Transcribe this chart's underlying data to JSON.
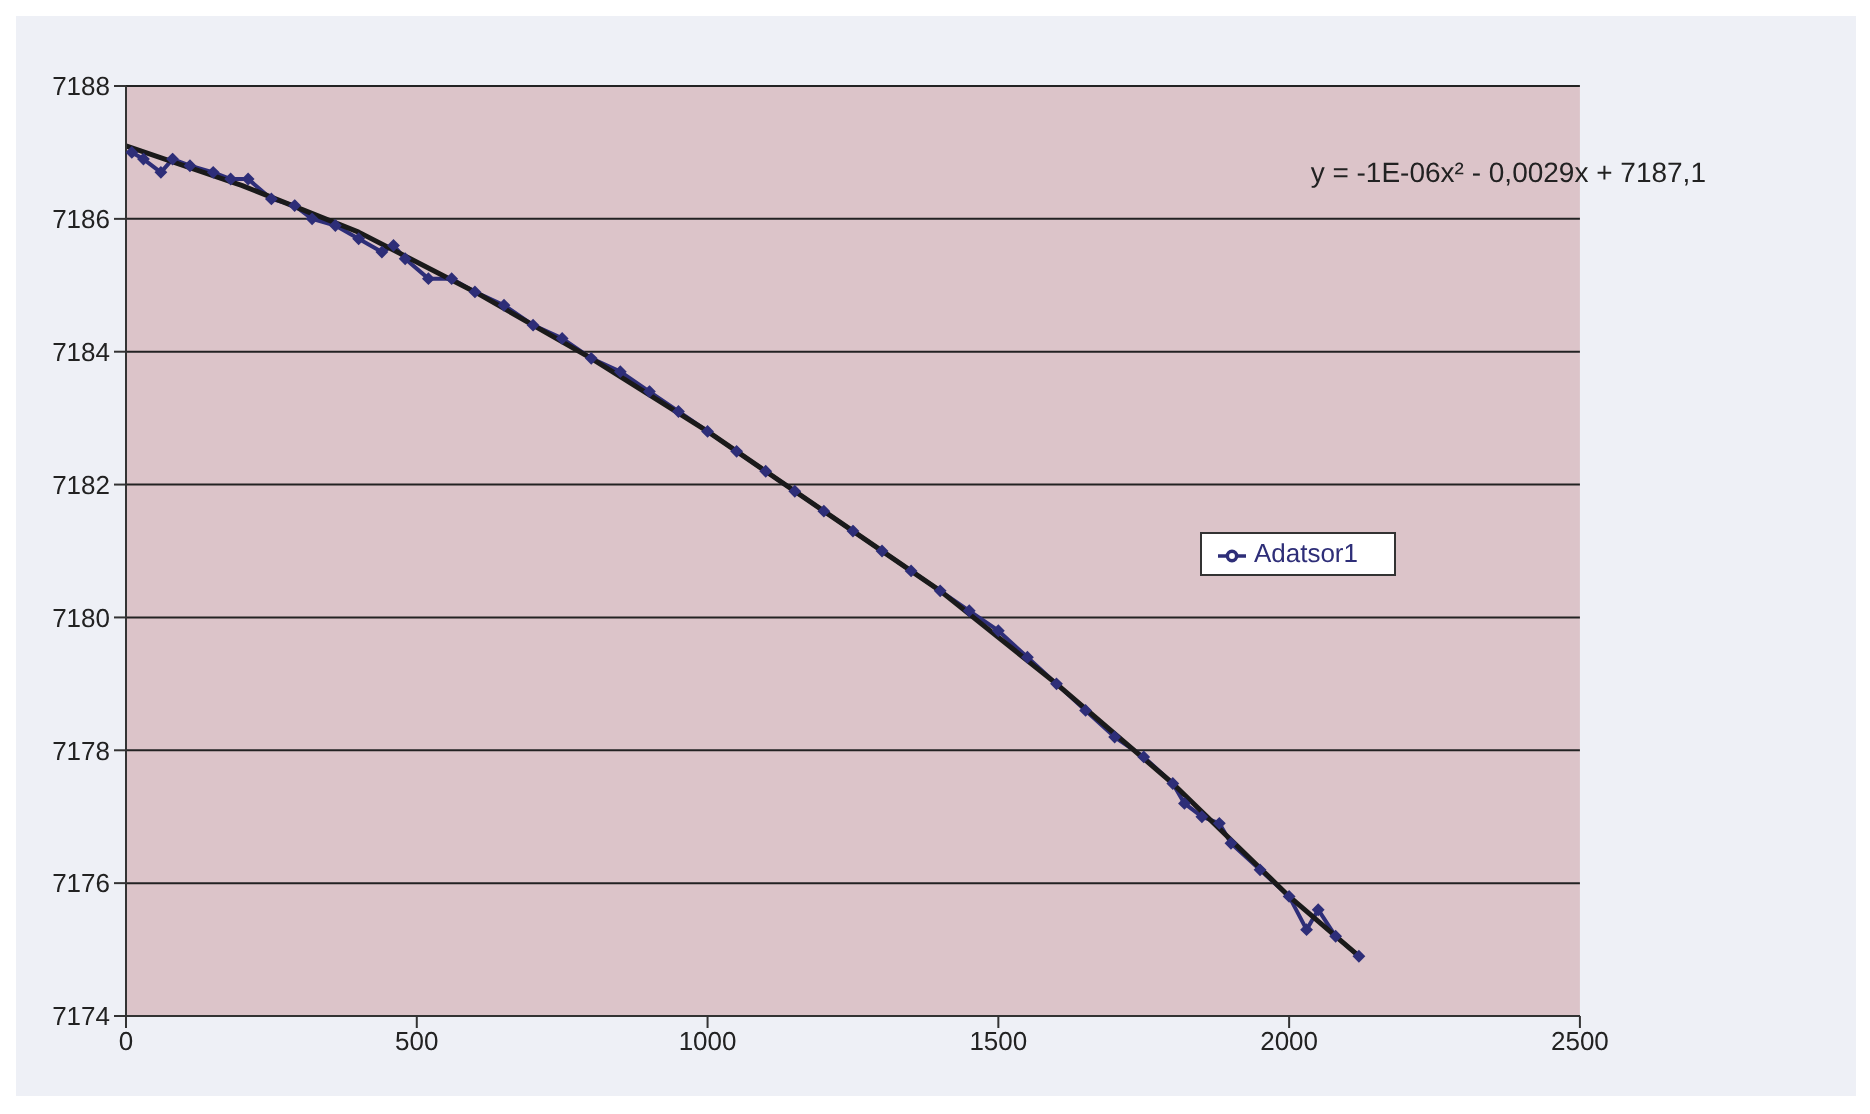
{
  "chart_data": {
    "type": "line",
    "xlim": [
      0,
      2500
    ],
    "xticks": [
      0,
      500,
      1000,
      1500,
      2000,
      2500
    ],
    "ylim": [
      7174,
      7188
    ],
    "yticks": [
      7174,
      7176,
      7178,
      7180,
      7182,
      7184,
      7186,
      7188
    ],
    "grid": "y",
    "legend": "right",
    "marker": "diamond",
    "annotations": [
      "y = -1E-06x² - 0,0029x + 7187,1"
    ],
    "series": [
      {
        "name": "Adatsor1",
        "color": "#2e2e78",
        "x": [
          10,
          30,
          60,
          80,
          110,
          150,
          180,
          210,
          250,
          290,
          320,
          360,
          400,
          440,
          460,
          480,
          520,
          560,
          600,
          650,
          700,
          750,
          800,
          850,
          900,
          950,
          1000,
          1050,
          1100,
          1150,
          1200,
          1250,
          1300,
          1350,
          1400,
          1450,
          1500,
          1550,
          1600,
          1650,
          1700,
          1750,
          1800,
          1820,
          1850,
          1880,
          1900,
          1950,
          2000,
          2030,
          2050,
          2080,
          2120
        ],
        "values": [
          7187.0,
          7186.9,
          7186.7,
          7186.9,
          7186.8,
          7186.7,
          7186.6,
          7186.6,
          7186.3,
          7186.2,
          7186.0,
          7185.9,
          7185.7,
          7185.5,
          7185.6,
          7185.4,
          7185.1,
          7185.1,
          7184.9,
          7184.7,
          7184.4,
          7184.2,
          7183.9,
          7183.7,
          7183.4,
          7183.1,
          7182.8,
          7182.5,
          7182.2,
          7181.9,
          7181.6,
          7181.3,
          7181.0,
          7180.7,
          7180.4,
          7180.1,
          7179.8,
          7179.4,
          7179.0,
          7178.6,
          7178.2,
          7177.9,
          7177.5,
          7177.2,
          7177.0,
          7176.9,
          7176.6,
          7176.2,
          7175.8,
          7175.3,
          7175.6,
          7175.2,
          7174.9
        ]
      },
      {
        "type": "line",
        "color": "#1a1a1a",
        "marker": "none",
        "x": [
          0,
          200,
          400,
          600,
          800,
          1000,
          1200,
          1400,
          1600,
          1800,
          2000,
          2120
        ],
        "values": [
          7187.1,
          7186.5,
          7185.8,
          7184.9,
          7183.9,
          7182.8,
          7181.6,
          7180.4,
          7179.0,
          7177.5,
          7175.8,
          7174.9
        ]
      }
    ]
  }
}
